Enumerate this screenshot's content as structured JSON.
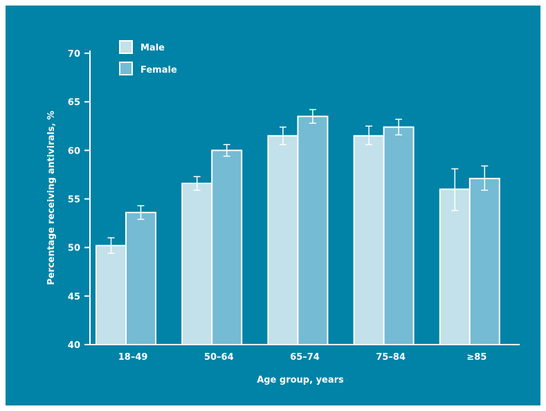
{
  "chart_data": {
    "type": "bar",
    "title": "",
    "xlabel": "Age group, years",
    "ylabel": "Percentage receiving antivirals, %",
    "ylim": [
      40,
      70
    ],
    "yticks": [
      40,
      45,
      50,
      55,
      60,
      65,
      70
    ],
    "grid": false,
    "legend_position": "top-left",
    "categories": [
      "18–49",
      "50–64",
      "65–74",
      "75–84",
      "≥85"
    ],
    "series": [
      {
        "name": "Male",
        "color": "#c3e1ea",
        "values": [
          50.2,
          56.6,
          61.5,
          61.5,
          56.0
        ],
        "error_low": [
          49.4,
          55.9,
          60.6,
          60.6,
          53.8
        ],
        "error_high": [
          51.0,
          57.3,
          62.4,
          62.5,
          58.1
        ]
      },
      {
        "name": "Female",
        "color": "#74bbd3",
        "values": [
          53.6,
          60.0,
          63.5,
          62.4,
          57.1
        ],
        "error_low": [
          52.9,
          59.4,
          62.8,
          61.6,
          55.9
        ],
        "error_high": [
          54.3,
          60.6,
          64.2,
          63.2,
          58.4
        ]
      }
    ],
    "colors": {
      "background": "#0083a6",
      "axis": "#ffffff",
      "text": "#ffffff",
      "error_bar": "#ffffff"
    }
  }
}
